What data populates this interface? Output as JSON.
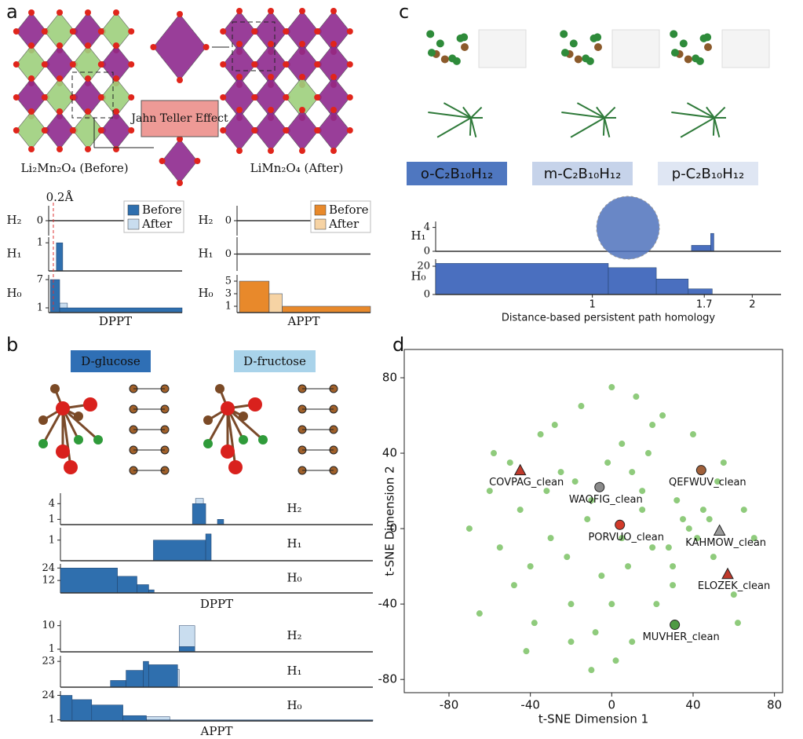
{
  "panels": {
    "a": {
      "letter": "a",
      "before_caption": "Li₂Mn₂O₄ (Before)",
      "after_caption": "LiMn₂O₄ (After)",
      "effect_label": "Jahn Teller Effect",
      "threshold": {
        "value": 0.2,
        "label": "0.2Å"
      },
      "dppt": {
        "xlabel": "DPPT",
        "xlim": [
          0,
          5.7
        ],
        "legend": true,
        "series": [
          {
            "name": "Before",
            "color": "#2f6fae"
          },
          {
            "name": "After",
            "color": "#c9ddef"
          }
        ],
        "rows": [
          {
            "label": "H₂",
            "ylim": [
              -1,
              1
            ],
            "yticks": [
              0
            ],
            "bars": []
          },
          {
            "label": "H₁",
            "ylim": [
              0,
              1.2
            ],
            "yticks": [
              1
            ],
            "bars": [
              {
                "series": 0,
                "x0": [
                  0.33
                ],
                "x1": [
                  0.6
                ],
                "values": [
                  1
                ]
              }
            ]
          },
          {
            "label": "H₀",
            "ylim": [
              0,
              8
            ],
            "yticks": [
              1,
              7
            ],
            "bars": [
              {
                "series": 1,
                "x0": [
                  0.47
                ],
                "x1": [
                  0.8
                ],
                "values": [
                  2
                ]
              },
              {
                "series": 0,
                "x0": [
                  0.07,
                  0.47
                ],
                "x1": [
                  0.47,
                  5.7
                ],
                "values": [
                  7,
                  1
                ]
              }
            ]
          }
        ]
      },
      "appt": {
        "xlabel": "APPT",
        "xlim": [
          0,
          5.7
        ],
        "legend": true,
        "series": [
          {
            "name": "Before",
            "color": "#e8892b"
          },
          {
            "name": "After",
            "color": "#f6d3a4"
          }
        ],
        "rows": [
          {
            "label": "H₂",
            "ylim": [
              -1,
              1
            ],
            "yticks": [
              0
            ],
            "bars": []
          },
          {
            "label": "H₁",
            "ylim": [
              -1,
              1
            ],
            "yticks": [
              0
            ],
            "bars": []
          },
          {
            "label": "H₀",
            "ylim": [
              0,
              6
            ],
            "yticks": [
              1,
              3,
              5
            ],
            "bars": [
              {
                "series": 1,
                "x0": [
                  1.37
                ],
                "x1": [
                  1.93
                ],
                "values": [
                  3
                ]
              },
              {
                "series": 0,
                "x0": [
                  0.1,
                  1.93
                ],
                "x1": [
                  1.37,
                  5.7
                ],
                "values": [
                  5,
                  1
                ]
              }
            ]
          }
        ]
      }
    },
    "b": {
      "letter": "b",
      "glucose_label": "D-glucose",
      "fructose_label": "D-fructose",
      "dppt": {
        "xlabel": "DPPT",
        "xlim": [
          0,
          4
        ],
        "series": [
          {
            "color": "#2f6fae"
          },
          {
            "color": "#c9ddef"
          }
        ],
        "rows": [
          {
            "label": "H₂",
            "ylim": [
              0,
              6
            ],
            "yticks": [
              1,
              4
            ],
            "bars": [
              {
                "series": 1,
                "x0": [
                  1.73
                ],
                "x1": [
                  1.83
                ],
                "values": [
                  5
                ]
              },
              {
                "series": 0,
                "x0": [
                  1.69,
                  2.01
                ],
                "x1": [
                  1.86,
                  2.09
                ],
                "values": [
                  4,
                  1
                ]
              }
            ]
          },
          {
            "label": "H₁",
            "ylim": [
              0,
              1.6
            ],
            "yticks": [
              1
            ],
            "bars": [
              {
                "series": 0,
                "x0": [
                  1.19,
                  1.86
                ],
                "x1": [
                  1.86,
                  1.93
                ],
                "values": [
                  1,
                  1.3
                ]
              }
            ]
          },
          {
            "label": "H₀",
            "ylim": [
              0,
              28
            ],
            "yticks": [
              12,
              24
            ],
            "bars": [
              {
                "series": 0,
                "x0": [
                  0,
                  0.73,
                  0.98,
                  1.13
                ],
                "x1": [
                  0.73,
                  0.98,
                  1.13,
                  1.2
                ],
                "values": [
                  24,
                  16,
                  8,
                  3
                ]
              }
            ]
          }
        ]
      },
      "appt": {
        "xlabel": "APPT",
        "xlim": [
          0,
          4
        ],
        "series": [
          {
            "color": "#2f6fae"
          },
          {
            "color": "#c9ddef"
          }
        ],
        "rows": [
          {
            "label": "H₂",
            "ylim": [
              0,
              12
            ],
            "yticks": [
              1,
              10
            ],
            "bars": [
              {
                "series": 1,
                "x0": [
                  1.52
                ],
                "x1": [
                  1.72
                ],
                "values": [
                  10
                ]
              },
              {
                "series": 0,
                "x0": [
                  1.52
                ],
                "x1": [
                  1.72
                ],
                "values": [
                  2
                ]
              }
            ]
          },
          {
            "label": "H₁",
            "ylim": [
              0,
              28
            ],
            "yticks": [
              23
            ],
            "bars": [
              {
                "series": 1,
                "x0": [
                  1.3
                ],
                "x1": [
                  1.52
                ],
                "values": [
                  16
                ]
              },
              {
                "series": 0,
                "x0": [
                  0.64,
                  0.84,
                  1.06,
                  1.13
                ],
                "x1": [
                  0.84,
                  1.06,
                  1.13,
                  1.5
                ],
                "values": [
                  6,
                  15,
                  23,
                  20
                ]
              }
            ]
          },
          {
            "label": "H₀",
            "ylim": [
              0,
              28
            ],
            "yticks": [
              1,
              24
            ],
            "bars": [
              {
                "series": 1,
                "x0": [
                  1.1
                ],
                "x1": [
                  1.4
                ],
                "values": [
                  4
                ]
              },
              {
                "series": 0,
                "x0": [
                  0,
                  0.15,
                  0.4,
                  0.8,
                  1.1
                ],
                "x1": [
                  0.15,
                  0.4,
                  0.8,
                  1.1,
                  4
                ],
                "values": [
                  24,
                  20,
                  15,
                  5,
                  1
                ]
              }
            ]
          }
        ]
      }
    },
    "c": {
      "letter": "c",
      "molecules": [
        "o-C₂B₁₀H₁₂",
        "m-C₂B₁₀H₁₂",
        "p-C₂B₁₀H₁₂"
      ],
      "plot": {
        "xlabel": "Distance-based persistent path homology",
        "xlim": [
          0.02,
          2.18
        ],
        "xticks": [
          1.0,
          1.7,
          2.0
        ],
        "series": [
          {
            "color": "#4a6fbf"
          }
        ],
        "rows": [
          {
            "label": "H₁",
            "ylim": [
              0,
              5
            ],
            "yticks": [
              0,
              4
            ],
            "bars": [
              {
                "series": 0,
                "x0": [
                  1.62,
                  1.74
                ],
                "x1": [
                  1.74,
                  1.76
                ],
                "values": [
                  1,
                  3
                ]
              }
            ]
          },
          {
            "label": "H₀",
            "ylim": [
              0,
              25
            ],
            "yticks": [
              0,
              20
            ],
            "bars": [
              {
                "series": 0,
                "x0": [
                  0.02,
                  1.1,
                  1.4,
                  1.6
                ],
                "x1": [
                  1.1,
                  1.4,
                  1.6,
                  1.75
                ],
                "values": [
                  22,
                  19,
                  11,
                  4
                ]
              }
            ]
          }
        ]
      }
    },
    "d": {
      "letter": "d",
      "xlabel": "t-SNE Dimension 1",
      "ylabel": "t-SNE Dimension 2",
      "xlim": [
        -102,
        84
      ],
      "ylim": [
        -87,
        95
      ],
      "xticks": [
        -80,
        -40,
        0,
        40,
        80
      ],
      "yticks": [
        -80,
        -40,
        0,
        40,
        80
      ],
      "background": {
        "color": "#8fcb7c",
        "x": [
          -70,
          -60,
          -55,
          -50,
          -45,
          -40,
          -35,
          -30,
          -25,
          -20,
          -15,
          -10,
          -5,
          0,
          5,
          10,
          15,
          20,
          25,
          30,
          35,
          40,
          45,
          50,
          55,
          60,
          65,
          70,
          -65,
          -58,
          -48,
          -38,
          -28,
          -18,
          -8,
          2,
          12,
          22,
          32,
          42,
          52,
          62,
          -42,
          -32,
          -22,
          -12,
          -2,
          8,
          18,
          28,
          38,
          48,
          -20,
          -10,
          0,
          10,
          20,
          30,
          5,
          15
        ],
        "y": [
          0,
          20,
          -10,
          35,
          10,
          -20,
          50,
          -5,
          30,
          -40,
          65,
          15,
          -25,
          75,
          45,
          -60,
          20,
          -10,
          60,
          -30,
          5,
          50,
          10,
          -15,
          35,
          -35,
          10,
          -5,
          -45,
          40,
          -30,
          -50,
          55,
          25,
          -55,
          -70,
          70,
          -40,
          15,
          -5,
          25,
          -50,
          -65,
          20,
          -15,
          5,
          35,
          -20,
          40,
          -10,
          0,
          5,
          -60,
          -75,
          -40,
          30,
          55,
          -20,
          -5,
          10
        ]
      },
      "highlights": [
        {
          "name": "COVPAG_clean",
          "x": -45,
          "y": 31,
          "marker": "triangle",
          "color": "#c0392b"
        },
        {
          "name": "WAQFIG_clean",
          "x": -6,
          "y": 22,
          "marker": "circle",
          "color": "#8a8a8a"
        },
        {
          "name": "QEFWUV_clean",
          "x": 44,
          "y": 31,
          "marker": "circle",
          "color": "#a0603a"
        },
        {
          "name": "PORVUO_clean",
          "x": 4,
          "y": 2,
          "marker": "circle",
          "color": "#d23a2a"
        },
        {
          "name": "KAHMOW_clean",
          "x": 53,
          "y": -1,
          "marker": "triangle",
          "color": "#9a9a9a"
        },
        {
          "name": "ELOZEK_clean",
          "x": 57,
          "y": -24,
          "marker": "triangle",
          "color": "#c0392b"
        },
        {
          "name": "MUVHER_clean",
          "x": 31,
          "y": -51,
          "marker": "circle",
          "color": "#4f9a45"
        }
      ]
    }
  }
}
